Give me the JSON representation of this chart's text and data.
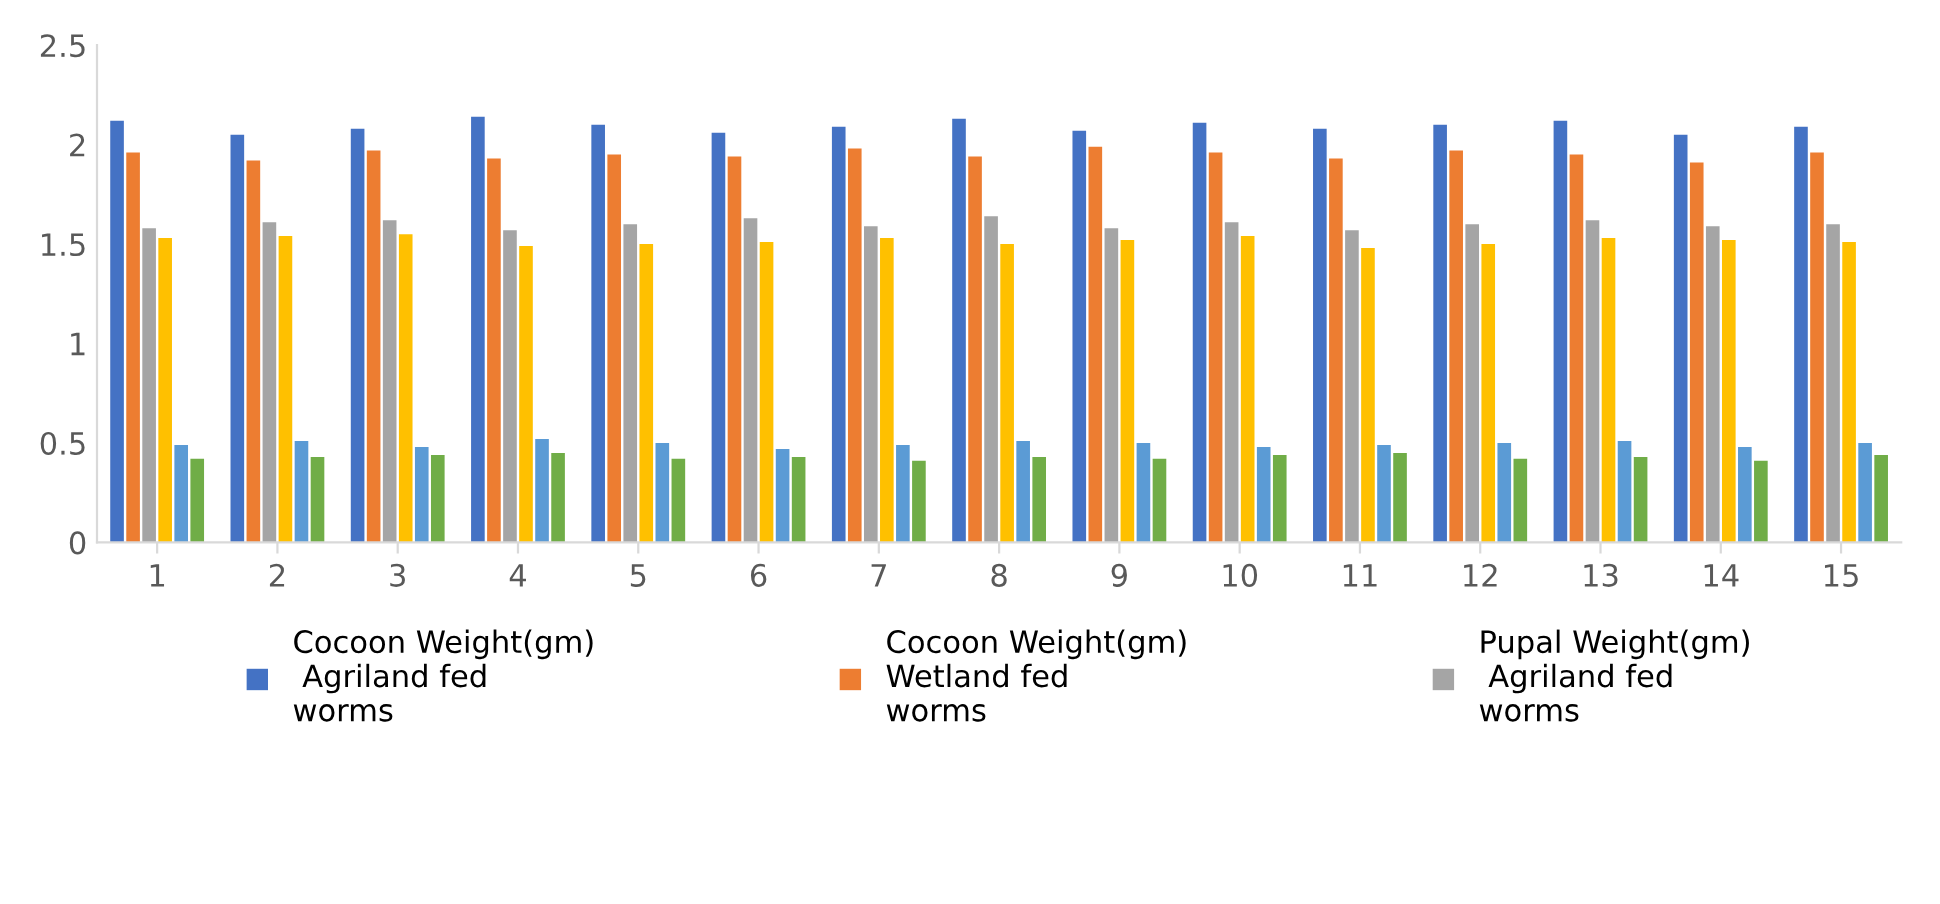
{
  "chart_data": {
    "type": "bar",
    "categories": [
      "1",
      "2",
      "3",
      "4",
      "5",
      "6",
      "7",
      "8",
      "9",
      "10",
      "11",
      "12",
      "13",
      "14",
      "15"
    ],
    "series": [
      {
        "name": "Cocoon Weight(gm)\n Agriland fed\nworms",
        "color": "#4472c4",
        "values": [
          2.12,
          2.05,
          2.08,
          2.14,
          2.1,
          2.06,
          2.09,
          2.13,
          2.07,
          2.11,
          2.08,
          2.1,
          2.12,
          2.05,
          2.09
        ]
      },
      {
        "name": "Cocoon Weight(gm)\nWetland fed\nworms",
        "color": "#ed7d31",
        "values": [
          1.96,
          1.92,
          1.97,
          1.93,
          1.95,
          1.94,
          1.98,
          1.94,
          1.99,
          1.96,
          1.93,
          1.97,
          1.95,
          1.91,
          1.96
        ]
      },
      {
        "name": "Pupal Weight(gm)\n Agriland fed\nworms",
        "color": "#a5a5a5",
        "values": [
          1.58,
          1.61,
          1.62,
          1.57,
          1.6,
          1.63,
          1.59,
          1.64,
          1.58,
          1.61,
          1.57,
          1.6,
          1.62,
          1.59,
          1.6
        ]
      },
      {
        "color": "#ffc000",
        "values": [
          1.53,
          1.54,
          1.55,
          1.49,
          1.5,
          1.51,
          1.53,
          1.5,
          1.52,
          1.54,
          1.48,
          1.5,
          1.53,
          1.52,
          1.51
        ]
      },
      {
        "color": "#5b9bd5",
        "values": [
          0.49,
          0.51,
          0.48,
          0.52,
          0.5,
          0.47,
          0.49,
          0.51,
          0.5,
          0.48,
          0.49,
          0.5,
          0.51,
          0.48,
          0.5
        ]
      },
      {
        "color": "#70ad47",
        "values": [
          0.42,
          0.43,
          0.44,
          0.45,
          0.42,
          0.43,
          0.41,
          0.43,
          0.42,
          0.44,
          0.45,
          0.42,
          0.43,
          0.41,
          0.44
        ]
      }
    ],
    "ylim": [
      0,
      2.5
    ],
    "yticks": [
      0,
      0.5,
      1,
      1.5,
      2,
      2.5
    ],
    "grid": false,
    "legend": "bottom"
  }
}
